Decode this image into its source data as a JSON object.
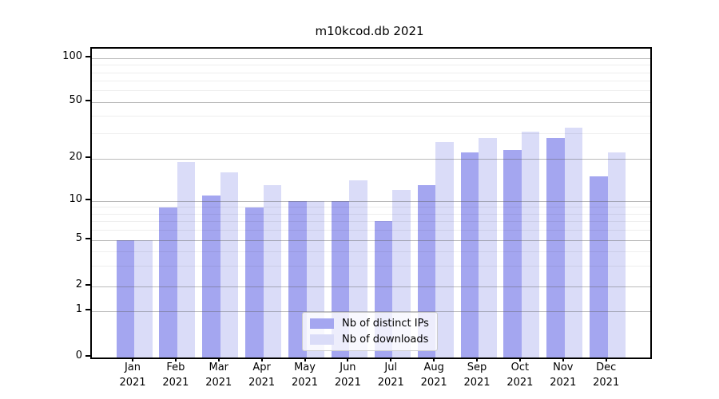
{
  "title": "m10kcod.db 2021",
  "colors": {
    "distinct_ips": "#a4a6f0",
    "downloads": "#dadcf8",
    "grid_major": "#b5b5b5",
    "grid_minor": "#ededed",
    "axis": "#000000",
    "legend_border": "#cccccc"
  },
  "legend": {
    "items": [
      {
        "label": "Nb of distinct IPs",
        "series": "distinct_ips"
      },
      {
        "label": "Nb of downloads",
        "series": "downloads"
      }
    ],
    "position": "lower center"
  },
  "x_axis": {
    "year_line": "2021",
    "months": [
      "Jan",
      "Feb",
      "Mar",
      "Apr",
      "May",
      "Jun",
      "Jul",
      "Aug",
      "Sep",
      "Oct",
      "Nov",
      "Dec"
    ]
  },
  "y_axis": {
    "tick_labels": [
      "0",
      "1",
      "2",
      "5",
      "10",
      "20",
      "50",
      "100"
    ]
  },
  "chart_data": {
    "type": "bar",
    "title": "m10kcod.db 2021",
    "categories": [
      "Jan 2021",
      "Feb 2021",
      "Mar 2021",
      "Apr 2021",
      "May 2021",
      "Jun 2021",
      "Jul 2021",
      "Aug 2021",
      "Sep 2021",
      "Oct 2021",
      "Nov 2021",
      "Dec 2021"
    ],
    "series": [
      {
        "name": "Nb of distinct IPs",
        "color": "#a4a6f0",
        "values": [
          5,
          9,
          11,
          9,
          10,
          10,
          7,
          13,
          22,
          23,
          28,
          15
        ]
      },
      {
        "name": "Nb of downloads",
        "color": "#dadcf8",
        "values": [
          5,
          19,
          16,
          13,
          10,
          14,
          12,
          26,
          28,
          31,
          33,
          22
        ]
      }
    ],
    "xlabel": "",
    "ylabel": "",
    "yscale": "symlog",
    "ylim": [
      0,
      115
    ],
    "yticks": [
      0,
      1,
      2,
      5,
      10,
      20,
      50,
      100
    ],
    "yticks_minor": [
      3,
      4,
      6,
      7,
      8,
      9,
      30,
      40,
      60,
      70,
      80,
      90
    ],
    "grid": true,
    "legend_position": "lower center"
  }
}
